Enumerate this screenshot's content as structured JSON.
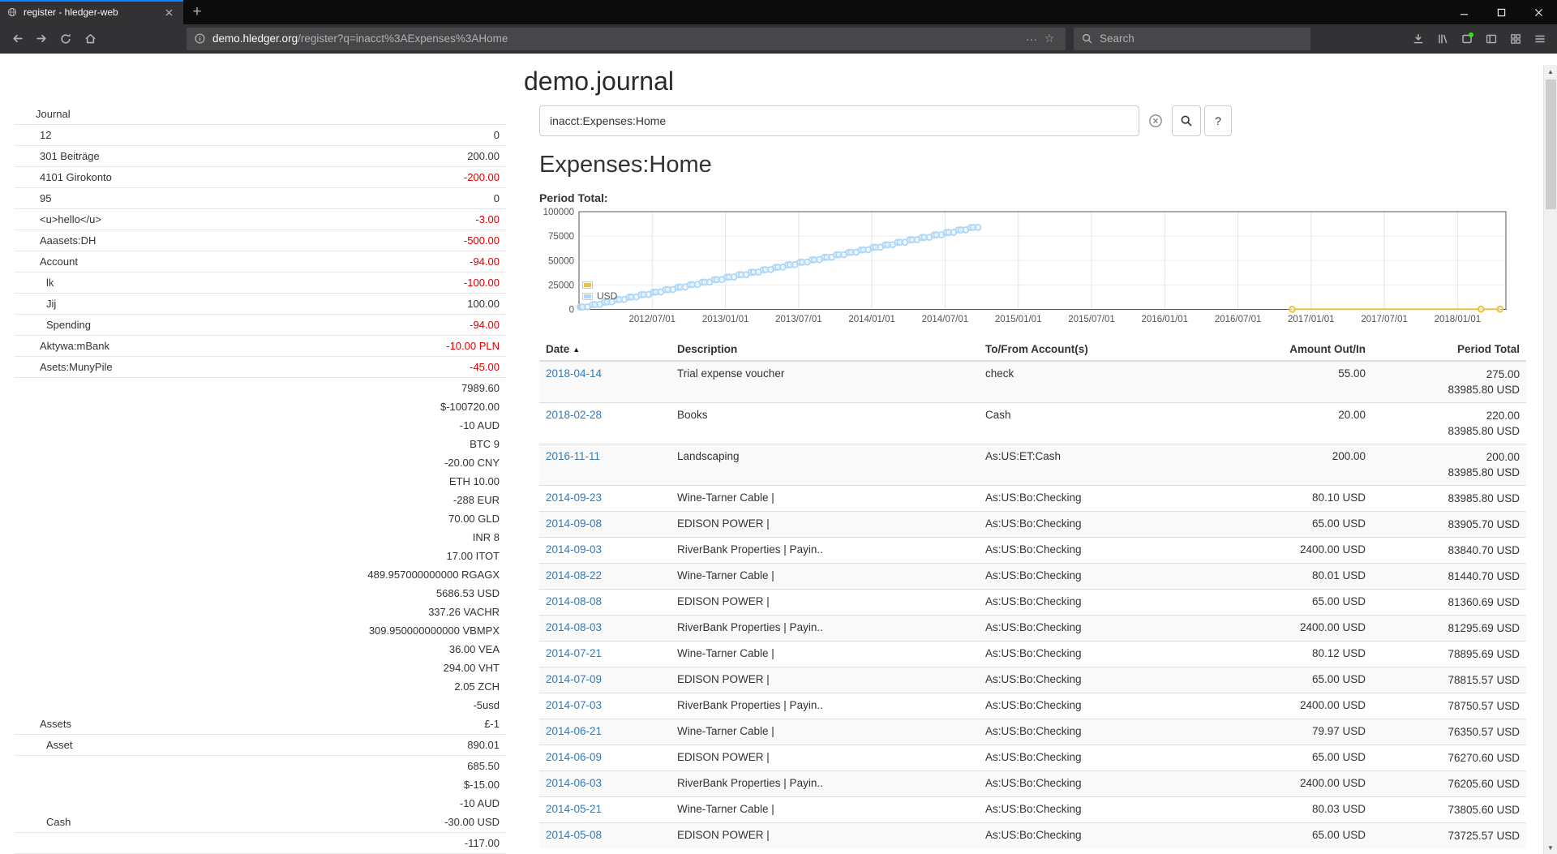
{
  "browser": {
    "tab": {
      "title": "register - hledger-web"
    },
    "url": {
      "domain": "demo.hledger.org",
      "path": "/register?q=inacct%3AExpenses%3AHome"
    },
    "search": {
      "placeholder": "Search"
    }
  },
  "page": {
    "title": "demo.journal",
    "heading": "Expenses:Home",
    "search_query": "inacct:Expenses:Home",
    "help_label": "?"
  },
  "sidebar": {
    "header": "Journal",
    "accounts": [
      {
        "name": "12",
        "indent": 1,
        "amounts": [
          {
            "text": "0"
          }
        ]
      },
      {
        "name": "301 Beiträge",
        "indent": 1,
        "amounts": [
          {
            "text": "200.00"
          }
        ]
      },
      {
        "name": "4101 Girokonto",
        "indent": 1,
        "amounts": [
          {
            "text": "-200.00",
            "neg": true
          }
        ]
      },
      {
        "name": "95",
        "indent": 1,
        "amounts": [
          {
            "text": "0"
          }
        ]
      },
      {
        "name": "<u>hello</u>",
        "indent": 1,
        "amounts": [
          {
            "text": "-3.00",
            "neg": true
          }
        ]
      },
      {
        "name": "Aaasets:DH",
        "indent": 1,
        "amounts": [
          {
            "text": "-500.00",
            "neg": true
          }
        ]
      },
      {
        "name": "Account",
        "indent": 1,
        "amounts": [
          {
            "text": "-94.00",
            "neg": true
          }
        ]
      },
      {
        "name": "lk",
        "indent": 2,
        "amounts": [
          {
            "text": "-100.00",
            "neg": true
          }
        ]
      },
      {
        "name": "Jij",
        "indent": 2,
        "amounts": [
          {
            "text": "100.00"
          }
        ]
      },
      {
        "name": "Spending",
        "indent": 2,
        "amounts": [
          {
            "text": "-94.00",
            "neg": true
          }
        ]
      },
      {
        "name": "Aktywa:mBank",
        "indent": 1,
        "amounts": [
          {
            "text": "-10.00 PLN",
            "neg": true
          }
        ]
      },
      {
        "name": "Asets:MunyPile",
        "indent": 1,
        "amounts": [
          {
            "text": "-45.00",
            "neg": true
          }
        ]
      },
      {
        "name": "Assets",
        "indent": 1,
        "amounts": [
          {
            "text": "7989.60"
          },
          {
            "text": "$-100720.00"
          },
          {
            "text": "-10 AUD"
          },
          {
            "text": "BTC 9"
          },
          {
            "text": "-20.00 CNY"
          },
          {
            "text": "ETH 10.00"
          },
          {
            "text": "-288 EUR"
          },
          {
            "text": "70.00 GLD"
          },
          {
            "text": "INR 8"
          },
          {
            "text": "17.00 ITOT"
          },
          {
            "text": "489.957000000000 RGAGX"
          },
          {
            "text": "5686.53 USD"
          },
          {
            "text": "337.26 VACHR"
          },
          {
            "text": "309.950000000000 VBMPX"
          },
          {
            "text": "36.00 VEA"
          },
          {
            "text": "294.00 VHT"
          },
          {
            "text": "2.05 ZCH"
          },
          {
            "text": "-5usd"
          },
          {
            "text": "£-1"
          }
        ]
      },
      {
        "name": "Asset",
        "indent": 2,
        "amounts": [
          {
            "text": "890.01"
          }
        ]
      },
      {
        "name": "Cash",
        "indent": 2,
        "amounts": [
          {
            "text": "685.50"
          },
          {
            "text": "$-15.00"
          },
          {
            "text": "-10 AUD"
          },
          {
            "text": "-30.00 USD"
          }
        ]
      },
      {
        "name": "",
        "indent": 2,
        "amounts": [
          {
            "text": "-117.00"
          }
        ]
      }
    ]
  },
  "chart_data": {
    "type": "scatter",
    "title": "Period Total:",
    "x_domain": [
      2012.0,
      2018.33
    ],
    "y_domain": [
      0,
      100000
    ],
    "y_ticks": [
      0,
      25000,
      50000,
      75000,
      100000
    ],
    "x_ticks": [
      {
        "value": 2012.5,
        "label": "2012/07/01"
      },
      {
        "value": 2013.0,
        "label": "2013/01/01"
      },
      {
        "value": 2013.5,
        "label": "2013/07/01"
      },
      {
        "value": 2014.0,
        "label": "2014/01/01"
      },
      {
        "value": 2014.5,
        "label": "2014/07/01"
      },
      {
        "value": 2015.0,
        "label": "2015/01/01"
      },
      {
        "value": 2015.5,
        "label": "2015/07/01"
      },
      {
        "value": 2016.0,
        "label": "2016/01/01"
      },
      {
        "value": 2016.5,
        "label": "2016/07/01"
      },
      {
        "value": 2017.0,
        "label": "2017/01/01"
      },
      {
        "value": 2017.5,
        "label": "2017/07/01"
      },
      {
        "value": 2018.0,
        "label": "2018/01/01"
      }
    ],
    "legend": [
      {
        "label": "",
        "color": "#edc240"
      },
      {
        "label": "USD",
        "color": "#afd8f8"
      }
    ],
    "series": [
      {
        "name": "",
        "color": "#edc240",
        "draw_line": true,
        "line_width": 2,
        "points": [
          [
            2016.87,
            200
          ],
          [
            2018.16,
            220
          ],
          [
            2018.29,
            275
          ]
        ]
      },
      {
        "name": "USD",
        "color": "#afd8f8",
        "draw_line": true,
        "line_width": 1,
        "points_spec": {
          "start_year": 2012,
          "months": 33,
          "per_month": [
            [
              0.1,
              2400
            ],
            [
              0.3,
              65
            ],
            [
              0.7,
              80
            ]
          ],
          "final_total": 83985.8
        }
      }
    ]
  },
  "register": {
    "columns": [
      "Date",
      "Description",
      "To/From Account(s)",
      "Amount Out/In",
      "Period Total"
    ],
    "rows": [
      {
        "date": "2018-04-14",
        "description": "Trial expense voucher",
        "account": "check",
        "amount": "55.00",
        "total": [
          "275.00",
          "83985.80 USD"
        ]
      },
      {
        "date": "2018-02-28",
        "description": "Books",
        "account": "Cash",
        "amount": "20.00",
        "total": [
          "220.00",
          "83985.80 USD"
        ]
      },
      {
        "date": "2016-11-11",
        "description": "Landscaping",
        "account": "As:US:ET:Cash",
        "amount": "200.00",
        "total": [
          "200.00",
          "83985.80 USD"
        ]
      },
      {
        "date": "2014-09-23",
        "description": "Wine-Tarner Cable |",
        "account": "As:US:Bo:Checking",
        "amount": "80.10 USD",
        "total": [
          "83985.80 USD"
        ]
      },
      {
        "date": "2014-09-08",
        "description": "EDISON POWER |",
        "account": "As:US:Bo:Checking",
        "amount": "65.00 USD",
        "total": [
          "83905.70 USD"
        ]
      },
      {
        "date": "2014-09-03",
        "description": "RiverBank Properties | Payin..",
        "account": "As:US:Bo:Checking",
        "amount": "2400.00 USD",
        "total": [
          "83840.70 USD"
        ]
      },
      {
        "date": "2014-08-22",
        "description": "Wine-Tarner Cable |",
        "account": "As:US:Bo:Checking",
        "amount": "80.01 USD",
        "total": [
          "81440.70 USD"
        ]
      },
      {
        "date": "2014-08-08",
        "description": "EDISON POWER |",
        "account": "As:US:Bo:Checking",
        "amount": "65.00 USD",
        "total": [
          "81360.69 USD"
        ]
      },
      {
        "date": "2014-08-03",
        "description": "RiverBank Properties | Payin..",
        "account": "As:US:Bo:Checking",
        "amount": "2400.00 USD",
        "total": [
          "81295.69 USD"
        ]
      },
      {
        "date": "2014-07-21",
        "description": "Wine-Tarner Cable |",
        "account": "As:US:Bo:Checking",
        "amount": "80.12 USD",
        "total": [
          "78895.69 USD"
        ]
      },
      {
        "date": "2014-07-09",
        "description": "EDISON POWER |",
        "account": "As:US:Bo:Checking",
        "amount": "65.00 USD",
        "total": [
          "78815.57 USD"
        ]
      },
      {
        "date": "2014-07-03",
        "description": "RiverBank Properties | Payin..",
        "account": "As:US:Bo:Checking",
        "amount": "2400.00 USD",
        "total": [
          "78750.57 USD"
        ]
      },
      {
        "date": "2014-06-21",
        "description": "Wine-Tarner Cable |",
        "account": "As:US:Bo:Checking",
        "amount": "79.97 USD",
        "total": [
          "76350.57 USD"
        ]
      },
      {
        "date": "2014-06-09",
        "description": "EDISON POWER |",
        "account": "As:US:Bo:Checking",
        "amount": "65.00 USD",
        "total": [
          "76270.60 USD"
        ]
      },
      {
        "date": "2014-06-03",
        "description": "RiverBank Properties | Payin..",
        "account": "As:US:Bo:Checking",
        "amount": "2400.00 USD",
        "total": [
          "76205.60 USD"
        ]
      },
      {
        "date": "2014-05-21",
        "description": "Wine-Tarner Cable |",
        "account": "As:US:Bo:Checking",
        "amount": "80.03 USD",
        "total": [
          "73805.60 USD"
        ]
      },
      {
        "date": "2014-05-08",
        "description": "EDISON POWER |",
        "account": "As:US:Bo:Checking",
        "amount": "65.00 USD",
        "total": [
          "73725.57 USD"
        ]
      }
    ]
  }
}
